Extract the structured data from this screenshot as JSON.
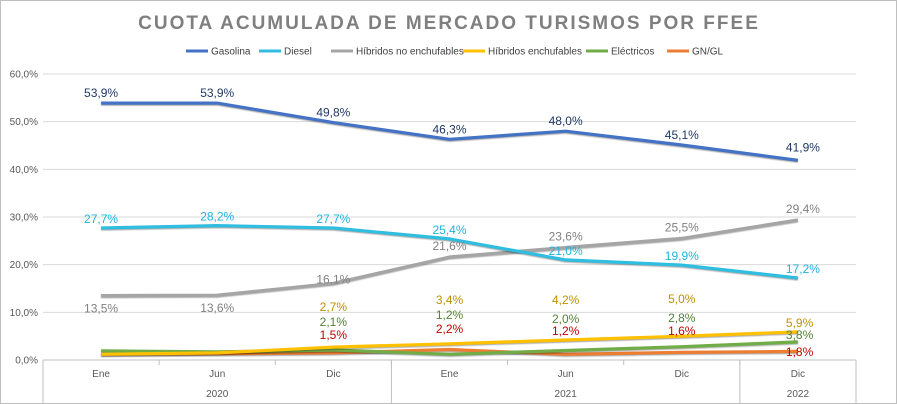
{
  "chart_data": {
    "type": "line",
    "title": "CUOTA ACUMULADA DE MERCADO TURISMOS POR FFEE",
    "categories": [
      "Ene",
      "Jun",
      "Dic",
      "Ene",
      "Jun",
      "Dic",
      "Dic"
    ],
    "groups": [
      "2020",
      "2021",
      "2022"
    ],
    "ylim": [
      0,
      60
    ],
    "yticks": [
      "0,0%",
      "10,0%",
      "20,0%",
      "30,0%",
      "40,0%",
      "50,0%",
      "60,0%"
    ],
    "series": [
      {
        "name": "Gasolina",
        "color": "#4472c4",
        "label_color": "#1f3864",
        "values": [
          53.9,
          53.9,
          49.8,
          46.3,
          48.0,
          45.1,
          41.9
        ],
        "labels": [
          "53,9%",
          "53,9%",
          "49,8%",
          "46,3%",
          "48,0%",
          "45,1%",
          "41,9%"
        ]
      },
      {
        "name": "Diesel",
        "color": "#2fbde0",
        "label_color": "#1fb3de",
        "values": [
          27.7,
          28.2,
          27.7,
          25.4,
          21.0,
          19.9,
          17.2
        ],
        "labels": [
          "27,7%",
          "28,2%",
          "27,7%",
          "25,4%",
          "21,0%",
          "19,9%",
          "17,2%"
        ]
      },
      {
        "name": "Híbridos no enchufables",
        "color": "#a5a5a5",
        "label_color": "#808080",
        "values": [
          13.5,
          13.6,
          16.1,
          21.6,
          23.6,
          25.5,
          29.4
        ],
        "labels": [
          "13,5%",
          "13,6%",
          "16,1%",
          "21,6%",
          "23,6%",
          "25,5%",
          "29,4%"
        ]
      },
      {
        "name": "Híbridos enchufables",
        "color": "#ffc000",
        "label_color": "#bf9000",
        "values": [
          1.2,
          1.5,
          2.7,
          3.4,
          4.2,
          5.0,
          5.9
        ],
        "labels": [
          "",
          "",
          "2,7%",
          "3,4%",
          "4,2%",
          "5,0%",
          "5,9%"
        ]
      },
      {
        "name": "Eléctricos",
        "color": "#70ad47",
        "label_color": "#548235",
        "values": [
          1.9,
          1.7,
          2.1,
          1.2,
          2.0,
          2.8,
          3.8
        ],
        "labels": [
          "",
          "",
          "2,1%",
          "1,2%",
          "2,0%",
          "2,8%",
          "3,8%"
        ]
      },
      {
        "name": "GN/GL",
        "color": "#ed7d31",
        "label_color": "#c00000",
        "values": [
          1.2,
          1.3,
          1.5,
          2.2,
          1.2,
          1.6,
          1.8
        ],
        "labels": [
          "",
          "",
          "1,5%",
          "2,2%",
          "1,2%",
          "1,6%",
          "1,8%"
        ]
      }
    ]
  }
}
